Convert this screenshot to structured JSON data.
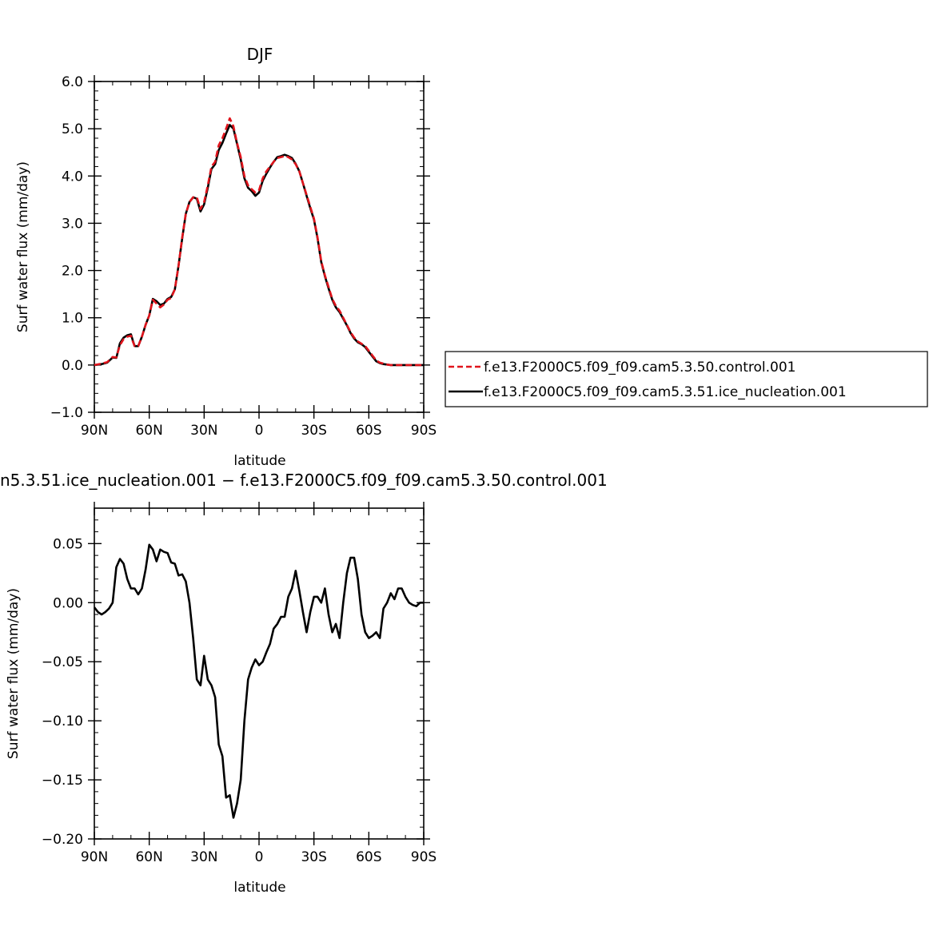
{
  "figure": {
    "top_title": "DJF",
    "bottom_title": "n5.3.51.ice_nucleation.001 − f.e13.F2000C5.f09_f09.cam5.3.50.control.001"
  },
  "chart_data": [
    {
      "type": "line",
      "title": "DJF",
      "xlabel": "latitude",
      "ylabel": "Surf water flux (mm/day)",
      "xlim": [
        90,
        -90
      ],
      "ylim": [
        -1.0,
        6.0
      ],
      "x_ticks": [
        90,
        60,
        30,
        0,
        -30,
        -60,
        -90
      ],
      "x_tick_labels": [
        "90N",
        "60N",
        "30N",
        "0",
        "30S",
        "60S",
        "90S"
      ],
      "y_ticks": [
        -1.0,
        0.0,
        1.0,
        2.0,
        3.0,
        4.0,
        5.0,
        6.0
      ],
      "y_tick_labels": [
        "−1.0",
        "0.0",
        "1.0",
        "2.0",
        "3.0",
        "4.0",
        "5.0",
        "6.0"
      ],
      "legend_position": "right",
      "x": [
        90,
        86,
        83,
        80,
        78,
        76,
        74,
        72,
        70,
        69,
        68,
        66,
        64,
        62,
        60,
        58,
        56,
        54,
        52,
        50,
        48,
        46,
        44,
        42,
        40,
        38,
        36,
        34,
        32,
        30,
        28,
        26,
        24,
        22,
        20,
        18,
        16,
        14,
        12,
        10,
        8,
        6,
        4,
        2,
        0,
        -2,
        -4,
        -6,
        -8,
        -10,
        -12,
        -14,
        -16,
        -18,
        -20,
        -22,
        -24,
        -26,
        -28,
        -30,
        -32,
        -34,
        -36,
        -38,
        -40,
        -42,
        -44,
        -46,
        -48,
        -50,
        -52,
        -54,
        -56,
        -58,
        -60,
        -62,
        -64,
        -66,
        -68,
        -70,
        -72,
        -74,
        -76,
        -78,
        -80,
        -82,
        -84,
        -86,
        -88,
        -90
      ],
      "series": [
        {
          "name": "f.e13.F2000C5.f09_f09.cam5.3.50.control.001",
          "color": "#e0141c",
          "dash": "dashed",
          "values": [
            0.0,
            0.03,
            0.06,
            0.17,
            0.16,
            0.42,
            0.55,
            0.6,
            0.62,
            0.5,
            0.4,
            0.4,
            0.6,
            0.85,
            1.05,
            1.38,
            1.3,
            1.22,
            1.28,
            1.38,
            1.42,
            1.6,
            2.1,
            2.7,
            3.2,
            3.45,
            3.55,
            3.55,
            3.3,
            3.45,
            3.8,
            4.2,
            4.3,
            4.65,
            4.8,
            5.0,
            5.22,
            5.05,
            4.7,
            4.4,
            4.0,
            3.8,
            3.72,
            3.65,
            3.7,
            3.95,
            4.1,
            4.2,
            4.3,
            4.38,
            4.4,
            4.42,
            4.4,
            4.35,
            4.25,
            4.1,
            3.85,
            3.6,
            3.35,
            3.1,
            2.7,
            2.2,
            1.9,
            1.65,
            1.4,
            1.25,
            1.15,
            1.0,
            0.85,
            0.7,
            0.58,
            0.5,
            0.45,
            0.4,
            0.3,
            0.2,
            0.1,
            0.05,
            0.03,
            0.01,
            0.0,
            0.0,
            0.0,
            0.0,
            0.0,
            0.0,
            0.0,
            0.0,
            0.0,
            0.0
          ]
        },
        {
          "name": "f.e13.F2000C5.f09_f09.cam5.3.51.ice_nucleation.001",
          "color": "#000000",
          "dash": "solid",
          "values": [
            0.0,
            0.02,
            0.05,
            0.16,
            0.15,
            0.46,
            0.58,
            0.63,
            0.65,
            0.52,
            0.4,
            0.4,
            0.6,
            0.85,
            1.05,
            1.4,
            1.35,
            1.27,
            1.3,
            1.4,
            1.44,
            1.6,
            2.1,
            2.68,
            3.2,
            3.45,
            3.55,
            3.52,
            3.25,
            3.4,
            3.75,
            4.15,
            4.25,
            4.55,
            4.7,
            4.9,
            5.08,
            5.0,
            4.68,
            4.35,
            3.95,
            3.75,
            3.68,
            3.58,
            3.65,
            3.9,
            4.05,
            4.18,
            4.3,
            4.4,
            4.42,
            4.45,
            4.42,
            4.38,
            4.26,
            4.1,
            3.85,
            3.58,
            3.32,
            3.08,
            2.68,
            2.18,
            1.88,
            1.62,
            1.38,
            1.22,
            1.12,
            0.98,
            0.84,
            0.68,
            0.56,
            0.48,
            0.44,
            0.38,
            0.28,
            0.18,
            0.08,
            0.04,
            0.02,
            0.01,
            0.0,
            0.0,
            0.0,
            0.0,
            0.0,
            0.0,
            0.0,
            0.0,
            0.0,
            0.0
          ]
        }
      ]
    },
    {
      "type": "line",
      "title": "n5.3.51.ice_nucleation.001 − f.e13.F2000C5.f09_f09.cam5.3.50.control.001",
      "xlabel": "latitude",
      "ylabel": "Surf water flux (mm/day)",
      "xlim": [
        90,
        -90
      ],
      "ylim": [
        -0.2,
        0.08
      ],
      "x_ticks": [
        90,
        60,
        30,
        0,
        -30,
        -60,
        -90
      ],
      "x_tick_labels": [
        "90N",
        "60N",
        "30N",
        "0",
        "30S",
        "60S",
        "90S"
      ],
      "y_ticks": [
        -0.2,
        -0.15,
        -0.1,
        -0.05,
        0.0,
        0.05
      ],
      "y_tick_labels": [
        "−0.20",
        "−0.15",
        "−0.10",
        "−0.05",
        "0.00",
        "0.05"
      ],
      "x": [
        90,
        88,
        86,
        84,
        82,
        80,
        78,
        76,
        74,
        72,
        70,
        68,
        66,
        64,
        62,
        60,
        58,
        56,
        54,
        52,
        50,
        48,
        46,
        44,
        42,
        40,
        38,
        36,
        34,
        32,
        30,
        28,
        26,
        24,
        22,
        20,
        18,
        16,
        14,
        12,
        10,
        8,
        6,
        4,
        2,
        0,
        -2,
        -4,
        -6,
        -8,
        -10,
        -12,
        -14,
        -16,
        -18,
        -20,
        -22,
        -24,
        -26,
        -28,
        -30,
        -32,
        -34,
        -36,
        -38,
        -40,
        -42,
        -44,
        -46,
        -48,
        -50,
        -52,
        -54,
        -56,
        -58,
        -60,
        -62,
        -64,
        -66,
        -68,
        -70,
        -72,
        -74,
        -76,
        -78,
        -80,
        -82,
        -84,
        -86,
        -88,
        -90
      ],
      "series": [
        {
          "name": "",
          "color": "#000000",
          "dash": "solid",
          "values": [
            -0.004,
            -0.008,
            -0.01,
            -0.008,
            -0.005,
            0.0,
            0.03,
            0.037,
            0.033,
            0.02,
            0.012,
            0.012,
            0.007,
            0.012,
            0.028,
            0.049,
            0.045,
            0.035,
            0.045,
            0.043,
            0.042,
            0.034,
            0.033,
            0.023,
            0.024,
            0.018,
            0.0,
            -0.03,
            -0.065,
            -0.07,
            -0.045,
            -0.065,
            -0.07,
            -0.08,
            -0.12,
            -0.13,
            -0.165,
            -0.163,
            -0.182,
            -0.17,
            -0.15,
            -0.1,
            -0.065,
            -0.055,
            -0.048,
            -0.053,
            -0.05,
            -0.042,
            -0.035,
            -0.022,
            -0.018,
            -0.012,
            -0.012,
            0.005,
            0.012,
            0.027,
            0.01,
            -0.008,
            -0.025,
            -0.008,
            0.005,
            0.005,
            0.0,
            0.012,
            -0.01,
            -0.025,
            -0.018,
            -0.03,
            0.0,
            0.025,
            0.038,
            0.038,
            0.02,
            -0.01,
            -0.025,
            -0.03,
            -0.028,
            -0.025,
            -0.03,
            -0.005,
            0.0,
            0.008,
            0.003,
            0.012,
            0.012,
            0.005,
            0.0,
            -0.002,
            -0.003,
            0.0,
            0.0
          ]
        }
      ]
    }
  ]
}
